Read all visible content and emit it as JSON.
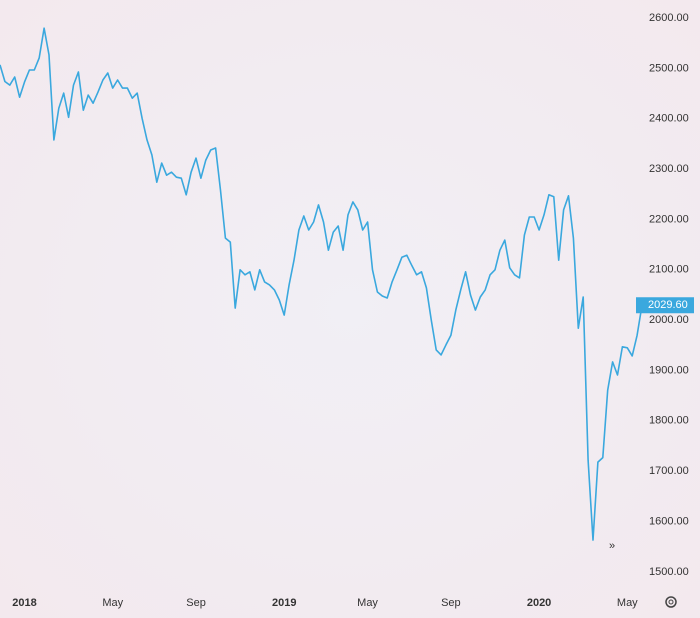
{
  "chart_data": {
    "type": "line",
    "categories": [
      null,
      null,
      null,
      null,
      null,
      "2018",
      null,
      null,
      null,
      null,
      null,
      null,
      null,
      null,
      null,
      null,
      null,
      null,
      null,
      null,
      null,
      null,
      null,
      "May",
      null,
      null,
      null,
      null,
      null,
      null,
      null,
      null,
      null,
      null,
      null,
      null,
      null,
      null,
      null,
      null,
      "Sep",
      null,
      null,
      null,
      null,
      null,
      null,
      null,
      null,
      null,
      null,
      null,
      null,
      null,
      null,
      null,
      null,
      null,
      "2019",
      null,
      null,
      null,
      null,
      null,
      null,
      null,
      null,
      null,
      null,
      null,
      null,
      null,
      null,
      null,
      null,
      "May",
      null,
      null,
      null,
      null,
      null,
      null,
      null,
      null,
      null,
      null,
      null,
      null,
      null,
      null,
      null,
      null,
      "Sep",
      null,
      null,
      null,
      null,
      null,
      null,
      null,
      null,
      null,
      null,
      null,
      null,
      null,
      null,
      null,
      null,
      null,
      "2020",
      null,
      null,
      null,
      null,
      null,
      null,
      null,
      null,
      null,
      null,
      null,
      null,
      null,
      null,
      null,
      null,
      null,
      "May",
      null,
      null,
      null
    ],
    "series": [
      {
        "color": "#3aa8de",
        "values": [
          2507,
          2474,
          2467,
          2483,
          2443,
          2473,
          2497,
          2497,
          2521,
          2580,
          2527,
          2358,
          2421,
          2451,
          2403,
          2467,
          2493,
          2417,
          2447,
          2431,
          2453,
          2477,
          2491,
          2461,
          2477,
          2461,
          2461,
          2441,
          2451,
          2401,
          2358,
          2328,
          2274,
          2312,
          2288,
          2294,
          2284,
          2282,
          2249,
          2294,
          2322,
          2282,
          2318,
          2338,
          2342,
          2258,
          2163,
          2155,
          2024,
          2100,
          2090,
          2096,
          2060,
          2100,
          2076,
          2070,
          2060,
          2040,
          2010,
          2070,
          2119,
          2179,
          2207,
          2179,
          2195,
          2229,
          2195,
          2139,
          2175,
          2187,
          2139,
          2209,
          2235,
          2219,
          2179,
          2195,
          2100,
          2056,
          2048,
          2044,
          2076,
          2100,
          2125,
          2129,
          2109,
          2090,
          2096,
          2064,
          2000,
          1941,
          1931,
          1951,
          1970,
          2020,
          2060,
          2096,
          2050,
          2020,
          2046,
          2060,
          2090,
          2100,
          2139,
          2159,
          2104,
          2090,
          2084,
          2169,
          2205,
          2205,
          2179,
          2209,
          2249,
          2245,
          2119,
          2219,
          2247,
          2163,
          1984,
          2046,
          1722,
          1563,
          1718,
          1727,
          1861,
          1917,
          1891,
          1947,
          1945,
          1929,
          1970,
          2029.6
        ]
      }
    ],
    "annotations": [
      {
        "value": 2029.6,
        "text": "2029.60"
      }
    ],
    "ylim": [
      1454,
      2636
    ],
    "yticks": [
      {
        "value": 1500,
        "label": "1500.00"
      },
      {
        "value": 1600,
        "label": "1600.00"
      },
      {
        "value": 1700,
        "label": "1700.00"
      },
      {
        "value": 1800,
        "label": "1800.00"
      },
      {
        "value": 1900,
        "label": "1900.00"
      },
      {
        "value": 2000,
        "label": "2000.00"
      },
      {
        "value": 2100,
        "label": "2100.00"
      },
      {
        "value": 2200,
        "label": "2200.00"
      },
      {
        "value": 2300,
        "label": "2300.00"
      },
      {
        "value": 2400,
        "label": "2400.00"
      },
      {
        "value": 2500,
        "label": "2500.00"
      },
      {
        "value": 2600,
        "label": "2600.00"
      }
    ]
  }
}
